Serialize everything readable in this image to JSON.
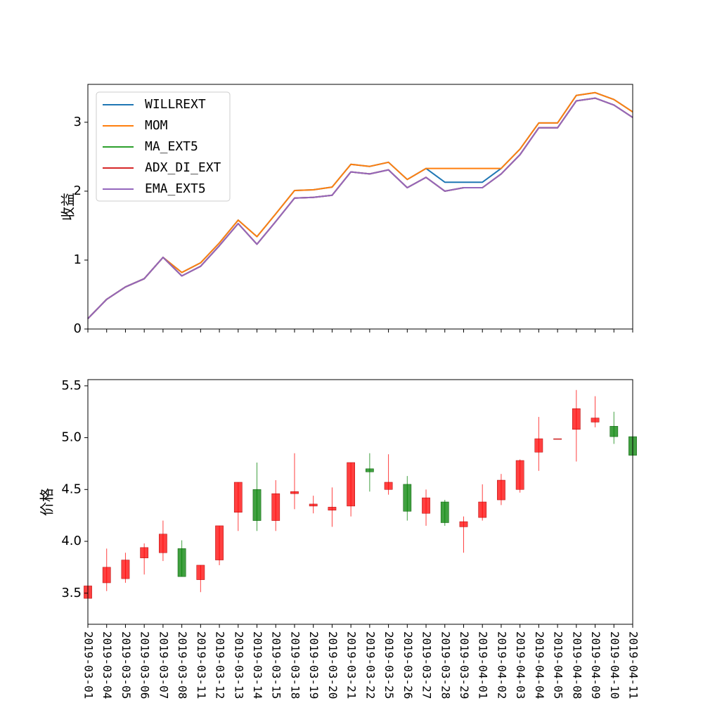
{
  "chart_data": [
    {
      "type": "line",
      "ylabel": "收益",
      "xlabel": "",
      "ylim": [
        0,
        3.55
      ],
      "yticks": [
        0,
        1,
        2,
        3
      ],
      "legend_position": "top-left",
      "grid": false,
      "x": [
        "2019-03-01",
        "2019-03-04",
        "2019-03-05",
        "2019-03-06",
        "2019-03-07",
        "2019-03-08",
        "2019-03-11",
        "2019-03-12",
        "2019-03-13",
        "2019-03-14",
        "2019-03-15",
        "2019-03-18",
        "2019-03-19",
        "2019-03-20",
        "2019-03-21",
        "2019-03-22",
        "2019-03-25",
        "2019-03-26",
        "2019-03-27",
        "2019-03-28",
        "2019-03-29",
        "2019-04-01",
        "2019-04-02",
        "2019-04-03",
        "2019-04-04",
        "2019-04-05",
        "2019-04-08",
        "2019-04-09",
        "2019-04-10",
        "2019-04-11"
      ],
      "series": [
        {
          "name": "WILLREXT",
          "color": "#1f77b4",
          "values": [
            0.15,
            0.43,
            0.61,
            0.73,
            1.04,
            0.82,
            0.96,
            1.25,
            1.58,
            1.34,
            1.67,
            2.01,
            2.02,
            2.06,
            2.39,
            2.36,
            2.42,
            2.17,
            2.33,
            2.13,
            2.13,
            2.13,
            2.33,
            2.61,
            2.99,
            2.99,
            3.39,
            3.43,
            3.33,
            3.15
          ]
        },
        {
          "name": "MOM",
          "color": "#ff7f0e",
          "values": [
            0.15,
            0.43,
            0.61,
            0.73,
            1.04,
            0.82,
            0.96,
            1.25,
            1.58,
            1.34,
            1.67,
            2.01,
            2.02,
            2.06,
            2.39,
            2.36,
            2.42,
            2.17,
            2.33,
            2.33,
            2.33,
            2.33,
            2.33,
            2.61,
            2.99,
            2.99,
            3.39,
            3.43,
            3.33,
            3.15
          ]
        },
        {
          "name": "MA_EXT5",
          "color": "#2ca02c",
          "values": [
            0.15,
            0.43,
            0.61,
            0.73,
            1.04,
            0.77,
            0.91,
            1.21,
            1.53,
            1.23,
            1.56,
            1.9,
            1.91,
            1.94,
            2.28,
            2.25,
            2.31,
            2.05,
            2.2,
            2.0,
            2.05,
            2.05,
            2.25,
            2.53,
            2.92,
            2.92,
            3.31,
            3.35,
            3.25,
            3.07
          ]
        },
        {
          "name": "ADX_DI_EXT",
          "color": "#d62728",
          "values": [
            0.15,
            0.43,
            0.61,
            0.73,
            1.04,
            0.77,
            0.91,
            1.21,
            1.53,
            1.23,
            1.56,
            1.9,
            1.91,
            1.94,
            2.28,
            2.25,
            2.31,
            2.05,
            2.2,
            2.0,
            2.05,
            2.05,
            2.25,
            2.53,
            2.92,
            2.92,
            3.31,
            3.35,
            3.25,
            3.07
          ]
        },
        {
          "name": "EMA_EXT5",
          "color": "#9467bd",
          "values": [
            0.15,
            0.43,
            0.61,
            0.73,
            1.04,
            0.77,
            0.91,
            1.21,
            1.53,
            1.23,
            1.56,
            1.9,
            1.91,
            1.94,
            2.28,
            2.25,
            2.31,
            2.05,
            2.2,
            2.0,
            2.05,
            2.05,
            2.25,
            2.53,
            2.92,
            2.92,
            3.31,
            3.35,
            3.25,
            3.07
          ]
        }
      ]
    },
    {
      "type": "candlestick",
      "ylabel": "价格",
      "xlabel": "",
      "ylim": [
        3.2,
        5.56
      ],
      "yticks": [
        3.5,
        4.0,
        4.5,
        5.0,
        5.5
      ],
      "ytick_labels": [
        "3.5",
        "4.0",
        "4.5",
        "5.0",
        "5.5"
      ],
      "grid": false,
      "up_color": "#ff0000",
      "down_color": "#008000",
      "categories": [
        "2019-03-01",
        "2019-03-04",
        "2019-03-05",
        "2019-03-06",
        "2019-03-07",
        "2019-03-08",
        "2019-03-11",
        "2019-03-12",
        "2019-03-13",
        "2019-03-14",
        "2019-03-15",
        "2019-03-18",
        "2019-03-19",
        "2019-03-20",
        "2019-03-21",
        "2019-03-22",
        "2019-03-25",
        "2019-03-26",
        "2019-03-27",
        "2019-03-28",
        "2019-03-29",
        "2019-04-01",
        "2019-04-02",
        "2019-04-03",
        "2019-04-04",
        "2019-04-05",
        "2019-04-08",
        "2019-04-09",
        "2019-04-10",
        "2019-04-11"
      ],
      "ohlc": [
        {
          "open": 3.45,
          "high": 3.57,
          "low": 3.43,
          "close": 3.57
        },
        {
          "open": 3.6,
          "high": 3.93,
          "low": 3.52,
          "close": 3.75
        },
        {
          "open": 3.64,
          "high": 3.89,
          "low": 3.6,
          "close": 3.82
        },
        {
          "open": 3.84,
          "high": 3.98,
          "low": 3.68,
          "close": 3.94
        },
        {
          "open": 3.89,
          "high": 4.2,
          "low": 3.81,
          "close": 4.07
        },
        {
          "open": 3.93,
          "high": 4.01,
          "low": 3.66,
          "close": 3.66
        },
        {
          "open": 3.63,
          "high": 3.77,
          "low": 3.51,
          "close": 3.77
        },
        {
          "open": 3.82,
          "high": 4.15,
          "low": 3.77,
          "close": 4.15
        },
        {
          "open": 4.28,
          "high": 4.57,
          "low": 4.1,
          "close": 4.57
        },
        {
          "open": 4.5,
          "high": 4.76,
          "low": 4.1,
          "close": 4.2
        },
        {
          "open": 4.2,
          "high": 4.59,
          "low": 4.1,
          "close": 4.46
        },
        {
          "open": 4.46,
          "high": 4.85,
          "low": 4.31,
          "close": 4.48
        },
        {
          "open": 4.34,
          "high": 4.44,
          "low": 4.27,
          "close": 4.36
        },
        {
          "open": 4.3,
          "high": 4.52,
          "low": 4.14,
          "close": 4.33
        },
        {
          "open": 4.34,
          "high": 4.76,
          "low": 4.24,
          "close": 4.76
        },
        {
          "open": 4.7,
          "high": 4.85,
          "low": 4.48,
          "close": 4.67
        },
        {
          "open": 4.5,
          "high": 4.84,
          "low": 4.45,
          "close": 4.57
        },
        {
          "open": 4.55,
          "high": 4.63,
          "low": 4.2,
          "close": 4.29
        },
        {
          "open": 4.27,
          "high": 4.5,
          "low": 4.15,
          "close": 4.42
        },
        {
          "open": 4.38,
          "high": 4.4,
          "low": 4.15,
          "close": 4.18
        },
        {
          "open": 4.14,
          "high": 4.24,
          "low": 3.89,
          "close": 4.19
        },
        {
          "open": 4.23,
          "high": 4.55,
          "low": 4.2,
          "close": 4.38
        },
        {
          "open": 4.4,
          "high": 4.65,
          "low": 4.35,
          "close": 4.59
        },
        {
          "open": 4.5,
          "high": 4.79,
          "low": 4.47,
          "close": 4.78
        },
        {
          "open": 4.86,
          "high": 5.2,
          "low": 4.68,
          "close": 4.99
        },
        {
          "open": 4.99,
          "high": 4.99,
          "low": 4.99,
          "close": 4.99
        },
        {
          "open": 5.08,
          "high": 5.46,
          "low": 4.77,
          "close": 5.28
        },
        {
          "open": 5.15,
          "high": 5.4,
          "low": 5.1,
          "close": 5.19
        },
        {
          "open": 5.11,
          "high": 5.25,
          "low": 4.94,
          "close": 5.01
        },
        {
          "open": 5.01,
          "high": 5.01,
          "low": 4.84,
          "close": 4.83
        }
      ]
    }
  ]
}
